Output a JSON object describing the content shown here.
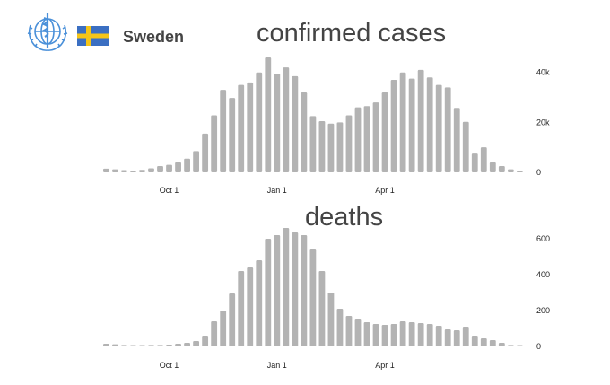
{
  "header": {
    "country": "Sweden",
    "logo_icon": "who-emblem-icon",
    "flag_icon": "sweden-flag-icon",
    "flag_colors": {
      "blue": "#3b6fc2",
      "yellow": "#f5c518"
    },
    "logo_color": "#4a90d9"
  },
  "chart_data": [
    {
      "type": "bar",
      "title": "confirmed cases",
      "bar_color": "#b3b3b3",
      "x_tick_labels": [
        "Oct 1",
        "Jan 1",
        "Apr 1"
      ],
      "x_tick_index": [
        7,
        19,
        31
      ],
      "y_ticks": [
        0,
        20000,
        40000
      ],
      "y_tick_labels": [
        "0",
        "20k",
        "40k"
      ],
      "ylim": [
        0,
        46000
      ],
      "values": [
        1500,
        1200,
        900,
        700,
        1000,
        1600,
        2500,
        3000,
        4000,
        5500,
        8500,
        15500,
        22800,
        33000,
        29800,
        35000,
        36000,
        40000,
        46000,
        39500,
        42000,
        38500,
        32000,
        22500,
        20500,
        19500,
        20000,
        22800,
        26000,
        26500,
        28000,
        32000,
        37000,
        40000,
        37500,
        41000,
        38000,
        35000,
        34000,
        25800,
        20200,
        7500,
        10000,
        4000,
        2500,
        1200,
        300
      ]
    },
    {
      "type": "bar",
      "title": "deaths",
      "bar_color": "#b3b3b3",
      "x_tick_labels": [
        "Oct 1",
        "Jan 1",
        "Apr 1"
      ],
      "x_tick_index": [
        7,
        19,
        31
      ],
      "y_ticks": [
        0,
        200,
        400,
        600
      ],
      "y_tick_labels": [
        "0",
        "200",
        "400",
        "600"
      ],
      "ylim": [
        0,
        670
      ],
      "values": [
        15,
        12,
        8,
        6,
        6,
        8,
        8,
        10,
        15,
        20,
        30,
        60,
        140,
        200,
        295,
        420,
        440,
        480,
        600,
        620,
        660,
        635,
        620,
        540,
        420,
        300,
        210,
        170,
        150,
        135,
        125,
        120,
        125,
        140,
        135,
        130,
        125,
        115,
        95,
        90,
        110,
        60,
        45,
        35,
        20,
        8,
        3
      ]
    }
  ]
}
